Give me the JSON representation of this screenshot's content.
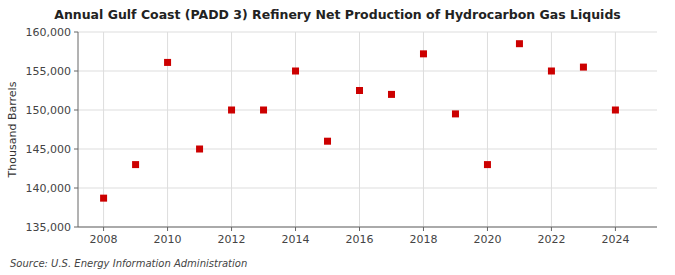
{
  "chart_data": {
    "type": "scatter",
    "title": "Annual Gulf Coast (PADD 3) Refinery Net Production of Hydrocarbon Gas Liquids",
    "ylabel": "Thousand Barrels",
    "source": "Source: U.S. Energy Information Administration",
    "x": [
      2008,
      2009,
      2010,
      2011,
      2012,
      2013,
      2014,
      2015,
      2016,
      2017,
      2018,
      2019,
      2020,
      2021,
      2022,
      2023,
      2024
    ],
    "values": [
      138700,
      143000,
      156100,
      145000,
      150000,
      150000,
      155000,
      146000,
      152500,
      152000,
      157200,
      149500,
      143000,
      158500,
      155000,
      155500,
      150000
    ],
    "xlim": [
      2007.2,
      2025.3
    ],
    "xticks": [
      2008,
      2010,
      2012,
      2014,
      2016,
      2018,
      2020,
      2022,
      2024
    ],
    "ylim": [
      135000,
      160000
    ],
    "yticks": [
      {
        "value": 135000,
        "label": "135,000"
      },
      {
        "value": 140000,
        "label": "140,000"
      },
      {
        "value": 145000,
        "label": "145,000"
      },
      {
        "value": 150000,
        "label": "150,000"
      },
      {
        "value": 155000,
        "label": "155,000"
      },
      {
        "value": 160000,
        "label": "160,000"
      }
    ],
    "color": "#cc0000",
    "marker": "square",
    "grid": true
  }
}
